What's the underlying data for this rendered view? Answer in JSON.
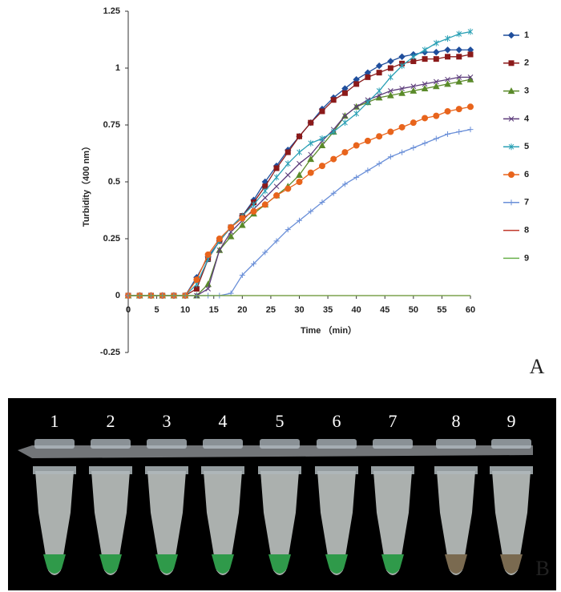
{
  "chart_data": {
    "type": "line",
    "x_label": "Time （min）",
    "y_label": "Turbidity（400 nm）",
    "x": [
      0,
      2,
      4,
      6,
      8,
      10,
      12,
      14,
      16,
      18,
      20,
      22,
      24,
      26,
      28,
      30,
      32,
      34,
      36,
      38,
      40,
      42,
      44,
      46,
      48,
      50,
      52,
      54,
      56,
      58,
      60
    ],
    "xlim": [
      0,
      60
    ],
    "xticks": [
      0,
      5,
      10,
      15,
      20,
      25,
      30,
      35,
      40,
      45,
      50,
      55,
      60
    ],
    "ylim": [
      -0.25,
      1.25
    ],
    "yticks": [
      -0.25,
      0,
      0.25,
      0.5,
      0.75,
      1,
      1.25
    ],
    "legend": "right",
    "series": [
      {
        "name": "1",
        "color": "#1f4e9c",
        "values": [
          0,
          0,
          0,
          0,
          0,
          0,
          0.08,
          0.17,
          0.24,
          0.3,
          0.35,
          0.42,
          0.5,
          0.57,
          0.64,
          0.7,
          0.76,
          0.82,
          0.87,
          0.91,
          0.95,
          0.98,
          1.01,
          1.03,
          1.05,
          1.06,
          1.07,
          1.07,
          1.08,
          1.08,
          1.08
        ]
      },
      {
        "name": "2",
        "color": "#8b1a1a",
        "values": [
          0,
          0,
          0,
          0,
          0,
          0,
          0.03,
          0.16,
          0.24,
          0.3,
          0.35,
          0.41,
          0.48,
          0.56,
          0.63,
          0.7,
          0.76,
          0.81,
          0.86,
          0.89,
          0.93,
          0.96,
          0.98,
          1.0,
          1.02,
          1.03,
          1.04,
          1.04,
          1.05,
          1.05,
          1.06
        ]
      },
      {
        "name": "3",
        "color": "#5a8a2a",
        "values": [
          0,
          0,
          0,
          0,
          0,
          0,
          0,
          0.05,
          0.2,
          0.26,
          0.31,
          0.36,
          0.4,
          0.44,
          0.48,
          0.53,
          0.6,
          0.66,
          0.72,
          0.79,
          0.83,
          0.85,
          0.87,
          0.88,
          0.89,
          0.9,
          0.91,
          0.92,
          0.93,
          0.94,
          0.95
        ]
      },
      {
        "name": "4",
        "color": "#5b3a7a",
        "values": [
          0,
          0,
          0,
          0,
          0,
          0,
          0,
          0.03,
          0.2,
          0.28,
          0.33,
          0.38,
          0.43,
          0.48,
          0.53,
          0.58,
          0.62,
          0.68,
          0.73,
          0.79,
          0.83,
          0.86,
          0.88,
          0.9,
          0.91,
          0.92,
          0.93,
          0.94,
          0.95,
          0.96,
          0.96
        ]
      },
      {
        "name": "5",
        "color": "#2aa0b5",
        "values": [
          0,
          0,
          0,
          0,
          0,
          0,
          0.05,
          0.16,
          0.24,
          0.3,
          0.35,
          0.4,
          0.46,
          0.52,
          0.58,
          0.63,
          0.67,
          0.69,
          0.72,
          0.76,
          0.8,
          0.85,
          0.9,
          0.96,
          1.01,
          1.05,
          1.08,
          1.11,
          1.13,
          1.15,
          1.16
        ]
      },
      {
        "name": "6",
        "color": "#e8641c",
        "values": [
          0,
          0,
          0,
          0,
          0,
          0,
          0.07,
          0.18,
          0.25,
          0.3,
          0.34,
          0.37,
          0.4,
          0.44,
          0.47,
          0.5,
          0.54,
          0.57,
          0.6,
          0.63,
          0.66,
          0.68,
          0.7,
          0.72,
          0.74,
          0.76,
          0.78,
          0.79,
          0.81,
          0.82,
          0.83
        ]
      },
      {
        "name": "7",
        "color": "#6a8fd8",
        "values": [
          0,
          0,
          0,
          0,
          0,
          0,
          0,
          0,
          0,
          0.01,
          0.09,
          0.14,
          0.19,
          0.24,
          0.29,
          0.33,
          0.37,
          0.41,
          0.45,
          0.49,
          0.52,
          0.55,
          0.58,
          0.61,
          0.63,
          0.65,
          0.67,
          0.69,
          0.71,
          0.72,
          0.73
        ]
      },
      {
        "name": "8",
        "color": "#c0392b",
        "values": [
          0,
          0,
          0,
          0,
          0,
          0,
          0,
          0,
          0,
          0,
          0,
          0,
          0,
          0,
          0,
          0,
          0,
          0,
          0,
          0,
          0,
          0,
          0,
          0,
          0,
          0,
          0,
          0,
          0,
          0,
          0
        ]
      },
      {
        "name": "9",
        "color": "#6ab04c",
        "values": [
          0,
          0,
          0,
          0,
          0,
          0,
          0,
          0,
          0,
          0,
          0,
          0,
          0,
          0,
          0,
          0,
          0,
          0,
          0,
          0,
          0,
          0,
          0,
          0,
          0,
          0,
          0,
          0,
          0,
          0,
          0
        ]
      }
    ]
  },
  "panel_labels": [
    "A",
    "B"
  ],
  "tube_labels": [
    "1",
    "2",
    "3",
    "4",
    "5",
    "6",
    "7",
    "8",
    "9"
  ]
}
